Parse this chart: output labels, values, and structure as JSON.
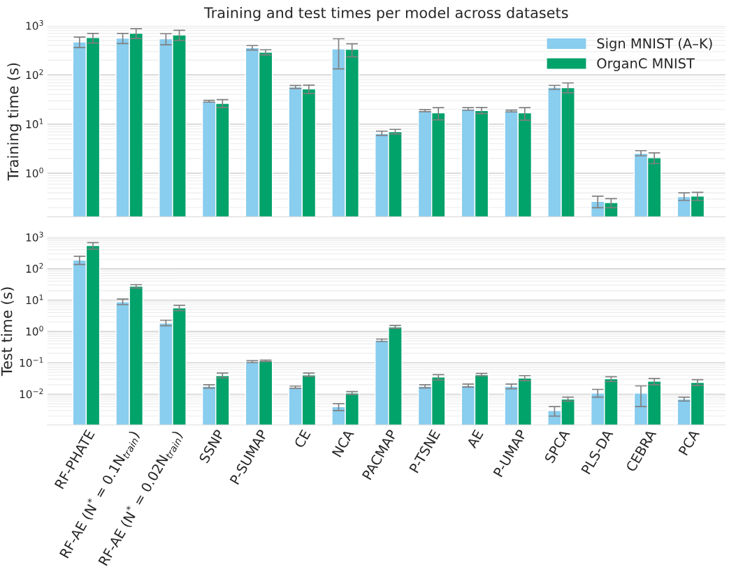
{
  "chart_data": [
    {
      "type": "bar",
      "title": "Training and test times per model across datasets",
      "ylabel": "Training time (s)",
      "log": "y",
      "grid": true,
      "legend": "top right",
      "tick_labels": "y",
      "categories": [
        null,
        null,
        null,
        null,
        null,
        null,
        null,
        null,
        null,
        null,
        null,
        null,
        null,
        null,
        null
      ],
      "ylim": [
        0.13,
        1000
      ],
      "yticks": [
        {
          "value": 1,
          "label": "10$^{0}$"
        },
        {
          "value": 10,
          "label": "10$^{1}$"
        },
        {
          "value": 100,
          "label": "10$^{2}$"
        },
        {
          "value": 1000,
          "label": "10$^{3}$"
        }
      ],
      "series": [
        {
          "name": "Sign MNIST (A–K)",
          "color": "#89cdef",
          "values": [
            470,
            560,
            545,
            28.9,
            357,
            57,
            339,
            6.45,
            18.7,
            20.3,
            18.5,
            55.9,
            0.269,
            2.55,
            0.335
          ],
          "errors": [
            [
              360,
              590
            ],
            [
              435,
              700
            ],
            [
              410,
              690
            ],
            [
              28,
              30.5
            ],
            [
              321,
              396
            ],
            [
              53,
              61
            ],
            [
              133,
              544
            ],
            [
              5.9,
              7.2
            ],
            [
              17.9,
              19.7
            ],
            [
              19.2,
              21.6
            ],
            [
              17.7,
              19.3
            ],
            [
              50.8,
              61.3
            ],
            [
              0.199,
              0.342
            ],
            [
              2.27,
              2.88
            ],
            [
              0.28,
              0.4
            ]
          ]
        },
        {
          "name": "OrganC MNIST",
          "color": "#02a26b",
          "values": [
            575,
            705,
            650,
            26.3,
            289,
            52,
            332,
            7.0,
            17.0,
            18.9,
            17.0,
            55.2,
            0.253,
            2.07,
            0.342
          ],
          "errors": [
            [
              445,
              700
            ],
            [
              550,
              870
            ],
            [
              505,
              810
            ],
            [
              21.8,
              31.4
            ],
            [
              255,
              325
            ],
            [
              42,
              62
            ],
            [
              234,
              431
            ],
            [
              6.3,
              7.8
            ],
            [
              12.2,
              21.6
            ],
            [
              16.4,
              21.8
            ],
            [
              12.0,
              21.6
            ],
            [
              43.4,
              68.7
            ],
            [
              0.199,
              0.305
            ],
            [
              1.57,
              2.6
            ],
            [
              0.28,
              0.41
            ]
          ]
        }
      ]
    },
    {
      "type": "bar",
      "ylabel": "Test time (s)",
      "log": "y",
      "grid": true,
      "categories": [
        "RF-PHATE",
        "RF-AE (N$^{*}$ = 0.1N$_{train}$)",
        "RF-AE (N$^{*}$ = 0.02N$_{train}$)",
        "SSNP",
        "P-SUMAP",
        "CE",
        "NCA",
        "PACMAP",
        "P-TSNE",
        "AE",
        "P-UMAP",
        "SPCA",
        "PLS-DA",
        "CEBRA",
        "PCA"
      ],
      "ylim": [
        0.00105,
        1000
      ],
      "yticks": [
        {
          "value": 0.01,
          "label": "10$^{−2}$"
        },
        {
          "value": 0.1,
          "label": "10$^{−1}$"
        },
        {
          "value": 1,
          "label": "10$^{0}$"
        },
        {
          "value": 10,
          "label": "10$^{1}$"
        },
        {
          "value": 100,
          "label": "10$^{2}$"
        },
        {
          "value": 1000,
          "label": "10$^{3}$"
        }
      ],
      "series": [
        {
          "color": "#89cdef",
          "values": [
            190,
            8.8,
            1.84,
            0.0178,
            0.108,
            0.0167,
            0.004,
            0.523,
            0.0179,
            0.0188,
            0.0179,
            0.003,
            0.0108,
            0.0108,
            0.007
          ],
          "errors": [
            [
              136,
              250
            ],
            [
              7.1,
              10.8
            ],
            [
              1.52,
              2.27
            ],
            [
              0.0156,
              0.0199
            ],
            [
              0.101,
              0.117
            ],
            [
              0.0154,
              0.0181
            ],
            [
              0.003,
              0.005
            ],
            [
              0.475,
              0.57
            ],
            [
              0.0158,
              0.02
            ],
            [
              0.0168,
              0.021
            ],
            [
              0.0149,
              0.021
            ],
            [
              0.002,
              0.004
            ],
            [
              0.008,
              0.0142
            ],
            [
              0.004,
              0.0183
            ],
            [
              0.006,
              0.008
            ]
          ]
        },
        {
          "color": "#02a26b",
          "values": [
            548,
            27.5,
            5.6,
            0.039,
            0.115,
            0.041,
            0.0108,
            1.39,
            0.035,
            0.0415,
            0.0327,
            0.007,
            0.0308,
            0.0258,
            0.0235
          ],
          "errors": [
            [
              420,
              680
            ],
            [
              24,
              31
            ],
            [
              4.6,
              6.8
            ],
            [
              0.033,
              0.047
            ],
            [
              0.11,
              0.121
            ],
            [
              0.037,
              0.047
            ],
            [
              0.0097,
              0.0121
            ],
            [
              1.25,
              1.56
            ],
            [
              0.028,
              0.042
            ],
            [
              0.038,
              0.046
            ],
            [
              0.027,
              0.039
            ],
            [
              0.006,
              0.008
            ],
            [
              0.0253,
              0.036
            ],
            [
              0.02,
              0.0317
            ],
            [
              0.0189,
              0.029
            ]
          ]
        }
      ]
    }
  ]
}
